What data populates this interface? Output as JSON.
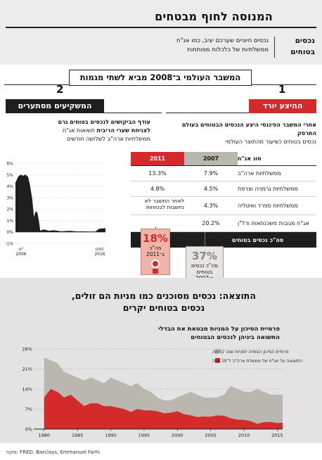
{
  "header": {
    "title": "המנוסה לחוף מבטחים",
    "tag_line1": "נכסים",
    "tag_line2": "בטוחים",
    "desc_line1": "נכסים חיוניים שערכם יציב, כמו אג\"ח",
    "desc_line2": "ממשלתיות של כלכלות מפותחות"
  },
  "crisis_banner": "המשבר העולמי ב־2008 מביא לשתי מגמות",
  "trend_numbers": {
    "one": "1",
    "two": "2"
  },
  "section1": {
    "heading": "ההיצע יורד",
    "desc_bold": "אחרי המשבר הפיננסי היצע הנכסים הבטוחים בעולם התרסק",
    "desc_rest": "נכסים בטוחים כשיעור מהתוצר העולמי"
  },
  "section2": {
    "heading": "המשקיעים מסתערים",
    "desc_line1": "עודף הביקושים לנכסים בטוחים גרם",
    "desc_line2_bold": "לצניחת שערי הריבית",
    "desc_line2_rest": " תשואות אג\"ח",
    "desc_line3": "ממשלתיות ארה\"ב לשלושה חודשים"
  },
  "table": {
    "header": {
      "name": "סוג אג\"ח",
      "y2007": "2007",
      "y2011": "2011"
    },
    "rows": [
      {
        "name": "ממשלתיות ארה\"ב",
        "y2007": "7.9%",
        "y2011": "13.3%"
      },
      {
        "name": "ממשלתיות גרמניה וצרפת",
        "y2007": "4.5%",
        "y2011": "4.8%"
      },
      {
        "name": "ממשלתיות ספרד ואיטליה",
        "y2007": "4.3%",
        "y2011": "לאחר המשבר לא נחשבות לבטוחות"
      },
      {
        "name": "אג\"ח מגובות משכנתאות ודל\"ן",
        "y2007": "20.2%",
        "y2011": ""
      }
    ],
    "footer": "סה\"כ נכסים בטוחים"
  },
  "badges": {
    "b2011": {
      "pct": "18%",
      "line1": "סה\"כ",
      "line2": "ב־2011"
    },
    "b2007": {
      "pct": "37%",
      "line1": "סה\"כ נכסים",
      "line2": "בטוחים",
      "line3": "ב־2007"
    }
  },
  "result": {
    "title_line1": "התוצאה: נכסים מסוכנים כמו מניות הם זולים,",
    "title_line2": "נכסים בטוחים יקרים",
    "sub_line1": "פרמיית הסיכון על המניות מבטאת את הבדלי",
    "sub_line2": "התשואה ביניהן לנכסים הבטוחים"
  },
  "source": "מקור: FRED, Barclays, Emmanuel Farhi",
  "colors": {
    "red": "#d42a2c",
    "gray": "#b9b7b0",
    "black": "#1e1e1e"
  },
  "chart_data": [
    {
      "type": "area",
      "title": "",
      "xlabel": "",
      "ylabel": "",
      "x_tick_labels": [
        "ינו' 2006",
        "ספט' 2016"
      ],
      "y_ticks": [
        "-1%",
        "0%",
        "1%",
        "2%",
        "3%",
        "4%",
        "5%",
        "6%"
      ],
      "ylim": [
        -1,
        6
      ],
      "xlim": [
        2006.0,
        2016.7
      ],
      "x": [
        2006.0,
        2006.3,
        2006.6,
        2006.9,
        2007.2,
        2007.5,
        2007.7,
        2007.9,
        2008.0,
        2008.2,
        2008.4,
        2008.6,
        2008.8,
        2008.95,
        2009.2,
        2009.5,
        2010.0,
        2010.5,
        2011.0,
        2011.5,
        2012.0,
        2012.5,
        2013.0,
        2013.5,
        2014.0,
        2014.5,
        2015.0,
        2015.5,
        2015.9,
        2016.2,
        2016.7
      ],
      "series": [
        {
          "values": [
            4.3,
            4.8,
            5.0,
            4.9,
            5.0,
            4.8,
            4.2,
            3.3,
            2.8,
            1.3,
            1.8,
            1.7,
            0.9,
            0.1,
            0.2,
            0.2,
            0.1,
            0.15,
            0.1,
            0.05,
            0.08,
            0.1,
            0.06,
            0.04,
            0.05,
            0.03,
            0.02,
            0.03,
            0.25,
            0.3,
            0.32
          ]
        }
      ]
    },
    {
      "type": "area",
      "title": "",
      "xlabel": "",
      "ylabel": "",
      "x_ticks": [
        "1980",
        "1985",
        "1990",
        "1995",
        "2000",
        "2005",
        "2010",
        "2015"
      ],
      "y_ticks": [
        "0%",
        "7%",
        "14%",
        "21%",
        "28%"
      ],
      "ylim": [
        0,
        28
      ],
      "xlim": [
        1979.5,
        2015.8
      ],
      "legend_position": "top-right",
      "x": [
        1980,
        1981,
        1982,
        1983,
        1984,
        1985,
        1986,
        1987,
        1988,
        1989,
        1990,
        1991,
        1992,
        1993,
        1994,
        1995,
        1996,
        1997,
        1998,
        1999,
        2000,
        2001,
        2002,
        2003,
        2004,
        2005,
        2006,
        2007,
        2008,
        2009,
        2010,
        2011,
        2012,
        2013,
        2014,
        2015,
        2015.8
      ],
      "series": [
        {
          "name": "פרמיית הסיכון הצפויה למניות שנה קדימה",
          "color": "#b9b7b0",
          "values": [
            25,
            24,
            23,
            20,
            19,
            18,
            17,
            18,
            17,
            16,
            18,
            17,
            16,
            15,
            16,
            14,
            13,
            11,
            10,
            10,
            11,
            12,
            13,
            12,
            11,
            11,
            11,
            12,
            15,
            14,
            13,
            13,
            14,
            13,
            12,
            12,
            12
          ]
        },
        {
          "name": "התשואה על אג\"ח של ממשלת ארה\"ב ל־10 שנה",
          "color": "#d42a2c",
          "values": [
            11,
            14,
            13,
            11,
            12,
            10,
            8,
            9,
            9,
            8,
            8,
            7.5,
            7,
            6,
            7,
            6.5,
            6.5,
            6.2,
            5.5,
            5.7,
            6.2,
            5.2,
            4.8,
            4.2,
            4.4,
            4.3,
            4.8,
            4.6,
            3.8,
            3.3,
            3.2,
            2.8,
            1.8,
            2.4,
            2.5,
            2.1,
            2.2
          ]
        }
      ]
    }
  ]
}
